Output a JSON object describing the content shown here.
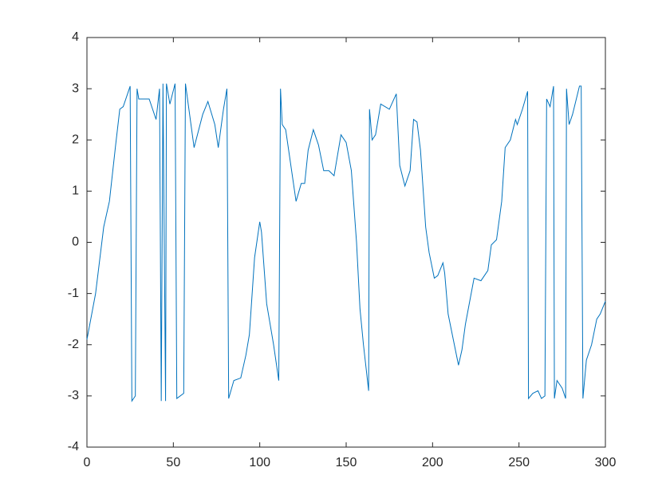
{
  "chart_data": {
    "type": "line",
    "color": "#0072bd",
    "x": [
      0,
      5,
      9.7,
      13,
      16.6,
      19,
      21,
      25,
      26,
      28,
      29,
      30,
      36,
      40,
      42,
      43,
      44,
      45.5,
      46,
      48,
      51,
      52,
      56,
      57,
      62,
      67,
      70,
      74,
      76,
      79,
      81,
      82,
      85,
      89,
      92,
      94,
      97,
      100,
      101,
      104,
      106,
      108,
      111,
      112,
      113,
      115,
      118,
      121,
      124,
      126,
      128,
      131,
      134,
      137,
      140,
      143,
      147,
      150,
      153,
      156,
      158,
      160,
      163,
      163.5,
      165,
      167,
      170,
      175,
      179,
      181,
      184,
      187,
      189,
      191,
      193,
      196,
      198,
      201,
      203,
      206,
      207,
      209,
      212,
      215,
      217,
      219,
      224,
      228,
      232,
      234,
      237,
      240,
      242,
      245,
      248,
      249,
      252,
      255,
      255.5,
      258,
      261,
      263,
      265,
      266,
      268,
      270,
      270.5,
      272,
      275,
      277,
      277.5,
      279,
      281,
      285,
      286,
      287,
      289,
      292,
      295,
      297,
      300
    ],
    "values": [
      -1.9,
      -1.0,
      0.3,
      0.8,
      1.9,
      2.6,
      2.65,
      3.05,
      -3.1,
      -3.0,
      3.0,
      2.8,
      2.8,
      2.4,
      3.0,
      -3.1,
      3.1,
      -3.1,
      3.1,
      2.7,
      3.1,
      -3.05,
      -2.95,
      3.1,
      1.85,
      2.5,
      2.75,
      2.3,
      1.85,
      2.6,
      3.0,
      -3.05,
      -2.7,
      -2.65,
      -2.2,
      -1.8,
      -0.3,
      0.4,
      0.2,
      -1.2,
      -1.6,
      -2.0,
      -2.7,
      3.0,
      2.3,
      2.2,
      1.5,
      0.8,
      1.15,
      1.15,
      1.8,
      2.2,
      1.9,
      1.4,
      1.4,
      1.3,
      2.1,
      1.95,
      1.4,
      0,
      -1.3,
      -2.0,
      -2.9,
      2.6,
      2.0,
      2.1,
      2.7,
      2.6,
      2.9,
      1.5,
      1.1,
      1.4,
      2.4,
      2.35,
      1.8,
      0.3,
      -0.2,
      -0.7,
      -0.65,
      -0.4,
      -0.6,
      -1.4,
      -1.9,
      -2.4,
      -2.1,
      -1.6,
      -0.7,
      -0.75,
      -0.55,
      -0.05,
      0.05,
      0.8,
      1.85,
      2.0,
      2.4,
      2.3,
      2.6,
      2.95,
      -3.05,
      -2.95,
      -2.9,
      -3.05,
      -3.0,
      2.8,
      2.65,
      3.05,
      -3.05,
      -2.7,
      -2.85,
      -3.05,
      3.0,
      2.3,
      2.5,
      3.05,
      3.05,
      -3.05,
      -2.3,
      -2.0,
      -1.5,
      -1.4,
      -1.15
    ],
    "xlim": [
      0,
      300
    ],
    "xticks": [
      0,
      50,
      100,
      150,
      200,
      250,
      300
    ],
    "ylim": [
      -4,
      4
    ],
    "yticks": [
      -4,
      -3,
      -2,
      -1,
      0,
      1,
      2,
      3,
      4
    ]
  }
}
